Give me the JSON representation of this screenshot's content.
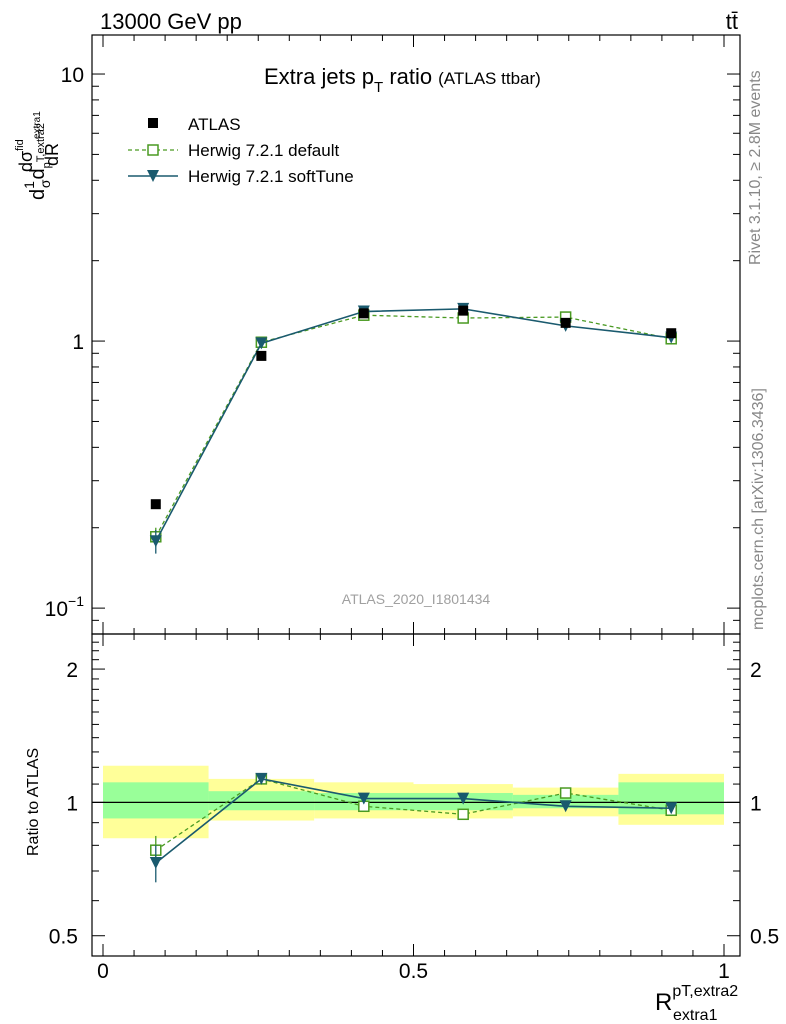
{
  "header": {
    "energy_label": "13000 GeV pp",
    "process_label": "tt̄"
  },
  "side_labels": {
    "rivet": "Rivet 3.1.10, ≥ 2.8M events",
    "mcplots": "mcplots.cern.ch [arXiv:1306.3436]"
  },
  "chart_data": {
    "type": "scatter",
    "title": "Extra jets p",
    "title_sub": "T",
    "title_tail": " ratio",
    "title_note": "(ATLAS ttbar)",
    "watermark": "ATLAS_2020_I1801434",
    "ylabel_main": "1/σ dσ^fid / dR^{pT,extra2}_{extra1}",
    "ylabel_ratio": "Ratio to ATLAS",
    "xlabel_main": "R",
    "xlabel_sup": "pT,extra2",
    "xlabel_sub": "extra1",
    "xlim": [
      0,
      1
    ],
    "ylim_main": [
      0.08,
      14
    ],
    "yscale_main": "log",
    "ylim_ratio": [
      0.45,
      2.4
    ],
    "yscale_ratio": "log",
    "xticks": [
      0,
      0.5,
      1
    ],
    "xtick_labels": [
      "0",
      "0.5",
      "1"
    ],
    "yticks_main": [
      {
        "value": 0.1,
        "base": "10",
        "exp": "−1"
      },
      {
        "value": 1,
        "base": "1",
        "exp": ""
      },
      {
        "value": 10,
        "base": "10",
        "exp": ""
      }
    ],
    "yticks_ratio": [
      {
        "value": 0.5,
        "label": "0.5"
      },
      {
        "value": 1,
        "label": "1"
      },
      {
        "value": 2,
        "label": "2"
      }
    ],
    "bin_edges": [
      0,
      0.17,
      0.34,
      0.5,
      0.66,
      0.83,
      1.0
    ],
    "x": [
      0.085,
      0.255,
      0.42,
      0.58,
      0.745,
      0.915
    ],
    "series": [
      {
        "name": "ATLAS",
        "style": "data",
        "color": "#000000",
        "values": [
          0.245,
          0.88,
          1.27,
          1.3,
          1.17,
          1.07
        ]
      },
      {
        "name": "Herwig 7.2.1 default",
        "style": "dashed-open-square",
        "color": "#4a9a22",
        "values": [
          0.185,
          0.99,
          1.25,
          1.22,
          1.23,
          1.02
        ],
        "errors": [
          0.015,
          0.02,
          0.02,
          0.02,
          0.02,
          0.02
        ],
        "ratio": [
          0.78,
          1.13,
          0.98,
          0.94,
          1.05,
          0.96
        ],
        "ratio_errors": [
          0.06,
          0.025,
          0.02,
          0.02,
          0.02,
          0.02
        ]
      },
      {
        "name": "Herwig 7.2.1 softTune",
        "style": "solid-down-triangle",
        "color": "#1a5a6e",
        "values": [
          0.178,
          0.98,
          1.29,
          1.32,
          1.14,
          1.03
        ],
        "errors": [
          0.018,
          0.025,
          0.02,
          0.02,
          0.02,
          0.02
        ],
        "ratio": [
          0.73,
          1.13,
          1.02,
          1.02,
          0.98,
          0.97
        ],
        "ratio_errors": [
          0.07,
          0.03,
          0.025,
          0.025,
          0.02,
          0.02
        ]
      }
    ],
    "ratio_bands": {
      "yellow_color": "#ffff99",
      "green_color": "#99ff99",
      "yellow": [
        [
          0.83,
          1.21
        ],
        [
          0.91,
          1.13
        ],
        [
          0.92,
          1.11
        ],
        [
          0.92,
          1.1
        ],
        [
          0.93,
          1.08
        ],
        [
          0.89,
          1.16
        ]
      ],
      "green": [
        [
          0.92,
          1.11
        ],
        [
          0.96,
          1.06
        ],
        [
          0.96,
          1.05
        ],
        [
          0.96,
          1.05
        ],
        [
          0.97,
          1.04
        ],
        [
          0.94,
          1.11
        ]
      ]
    }
  }
}
